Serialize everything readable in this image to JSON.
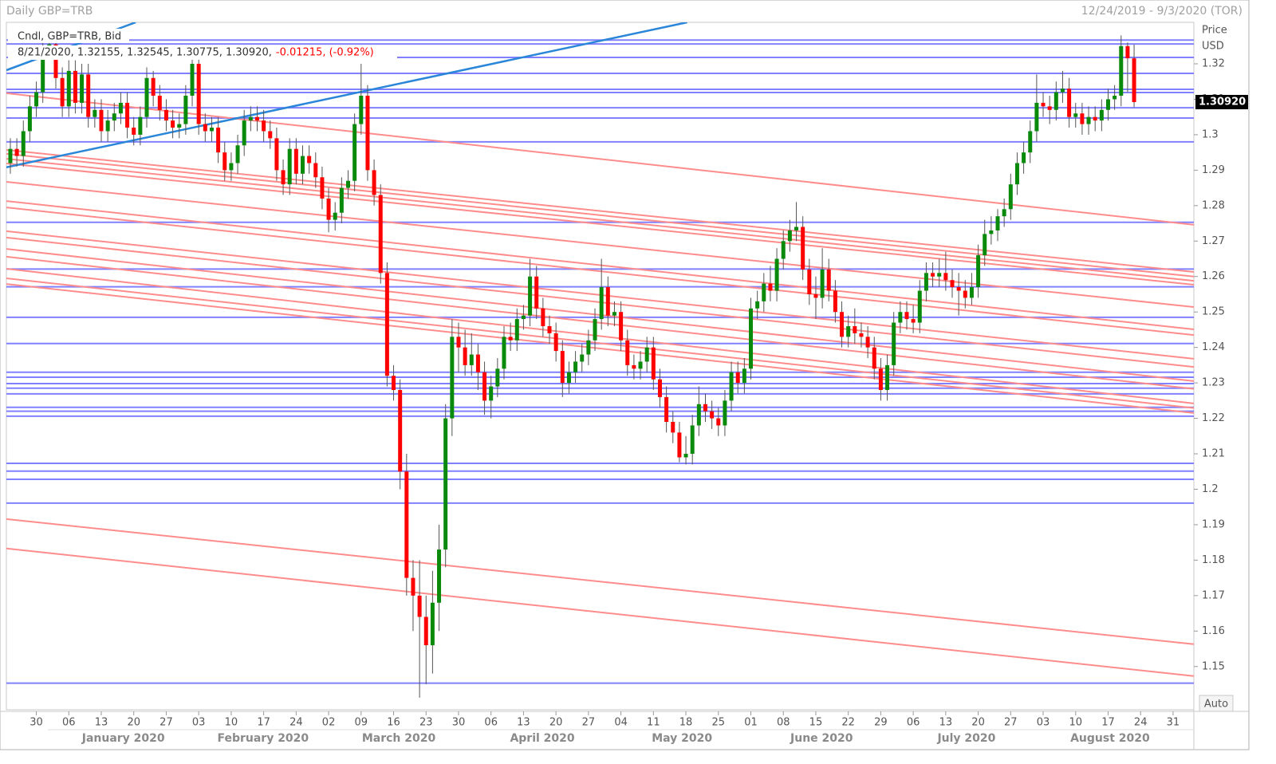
{
  "chart_data": {
    "type": "candlestick",
    "title": "Daily GBP=TRB",
    "date_range": "12/24/2019 - 9/3/2020 (TOR)",
    "legend": {
      "title": "Cndl, GBP=TRB, Bid",
      "quote": "8/21/2020, 1.32155, 1.32545, 1.30775, 1.30920,",
      "change": "-0.01215, (-0.92%)"
    },
    "y_axis_title": "Price",
    "y_axis_unit": "USD",
    "auto_button": "Auto",
    "up_color": "#0a8a0a",
    "down_color": "#ff0000",
    "hline_color": "#8080ff",
    "trend_color": "#ff8c8c",
    "channel_color": "#2a86d8",
    "xlim": [
      -0.61,
      182.2
    ],
    "ylim": [
      1.1378,
      1.3317
    ],
    "yticks": [
      1.15,
      1.16,
      1.17,
      1.18,
      1.19,
      1.2,
      1.21,
      1.22,
      1.23,
      1.24,
      1.25,
      1.26,
      1.27,
      1.28,
      1.29,
      1.3,
      1.31,
      1.32
    ],
    "last_price": {
      "value": 1.3092,
      "label": "1.30920"
    },
    "xticks": [
      {
        "value": 4,
        "label": "30"
      },
      {
        "value": 9,
        "label": "06"
      },
      {
        "value": 14,
        "label": "13"
      },
      {
        "value": 19,
        "label": "20"
      },
      {
        "value": 24,
        "label": "27"
      },
      {
        "value": 29,
        "label": "03"
      },
      {
        "value": 34,
        "label": "10"
      },
      {
        "value": 39,
        "label": "17"
      },
      {
        "value": 44,
        "label": "24"
      },
      {
        "value": 49,
        "label": "02"
      },
      {
        "value": 54,
        "label": "09"
      },
      {
        "value": 59,
        "label": "16"
      },
      {
        "value": 64,
        "label": "23"
      },
      {
        "value": 69,
        "label": "30"
      },
      {
        "value": 74,
        "label": "06"
      },
      {
        "value": 79,
        "label": "13"
      },
      {
        "value": 84,
        "label": "20"
      },
      {
        "value": 89,
        "label": "27"
      },
      {
        "value": 94,
        "label": "04"
      },
      {
        "value": 99,
        "label": "11"
      },
      {
        "value": 104,
        "label": "18"
      },
      {
        "value": 109,
        "label": "25"
      },
      {
        "value": 114,
        "label": "01"
      },
      {
        "value": 119,
        "label": "08"
      },
      {
        "value": 124,
        "label": "15"
      },
      {
        "value": 129,
        "label": "22"
      },
      {
        "value": 134,
        "label": "29"
      },
      {
        "value": 139,
        "label": "06"
      },
      {
        "value": 144,
        "label": "13"
      },
      {
        "value": 149,
        "label": "20"
      },
      {
        "value": 154,
        "label": "27"
      },
      {
        "value": 159,
        "label": "03"
      },
      {
        "value": 164,
        "label": "10"
      },
      {
        "value": 169,
        "label": "17"
      },
      {
        "value": 174,
        "label": "24"
      },
      {
        "value": 179,
        "label": "31"
      }
    ],
    "months": [
      {
        "value": 17.4,
        "label": "January 2020"
      },
      {
        "value": 38.9,
        "label": "February 2020"
      },
      {
        "value": 59.8,
        "label": "March 2020"
      },
      {
        "value": 81.9,
        "label": "April 2020"
      },
      {
        "value": 103.4,
        "label": "May 2020"
      },
      {
        "value": 124.9,
        "label": "June 2020"
      },
      {
        "value": 147.2,
        "label": "July 2020"
      },
      {
        "value": 169.3,
        "label": "August 2020"
      }
    ],
    "hlines": [
      1.3267,
      1.3256,
      1.3218,
      1.3173,
      1.3128,
      1.3119,
      1.3076,
      1.3047,
      1.298,
      1.2753,
      1.2621,
      1.2571,
      1.2485,
      1.2411,
      1.233,
      1.2316,
      1.2298,
      1.2285,
      1.2269,
      1.2231,
      1.222,
      1.2206,
      1.2073,
      1.2051,
      1.2028,
      1.1961,
      1.1453
    ],
    "trendlines": [
      [
        -0.61,
        1.3117,
        182.2,
        1.2746
      ],
      [
        -0.61,
        1.2957,
        182.2,
        1.2613
      ],
      [
        -0.61,
        1.2946,
        182.2,
        1.26
      ],
      [
        -0.61,
        1.2932,
        182.2,
        1.2588
      ],
      [
        -0.61,
        1.2919,
        182.2,
        1.2577
      ],
      [
        -0.61,
        1.2867,
        182.2,
        1.2514
      ],
      [
        -0.61,
        1.2813,
        182.2,
        1.2451
      ],
      [
        -0.61,
        1.2795,
        182.2,
        1.2435
      ],
      [
        -0.61,
        1.2728,
        182.2,
        1.2368
      ],
      [
        -0.61,
        1.271,
        182.2,
        1.2345
      ],
      [
        -0.61,
        1.2678,
        182.2,
        1.2305
      ],
      [
        -0.61,
        1.2656,
        182.2,
        1.2283
      ],
      [
        -0.61,
        1.2622,
        182.2,
        1.2242
      ],
      [
        -0.61,
        1.2595,
        182.2,
        1.2229
      ],
      [
        -0.61,
        1.2579,
        182.2,
        1.2215
      ],
      [
        -0.61,
        1.1916,
        182.2,
        1.1563
      ],
      [
        -0.61,
        1.1833,
        182.2,
        1.1473
      ]
    ],
    "channels": [
      [
        -0.61,
        1.2908,
        104.2,
        1.3317
      ],
      [
        -0.61,
        1.3182,
        19.3,
        1.3317
      ]
    ],
    "candles": [
      [
        1.292,
        1.299,
        1.289,
        1.296
      ],
      [
        1.296,
        1.299,
        1.291,
        1.294
      ],
      [
        1.294,
        1.304,
        1.291,
        1.301
      ],
      [
        1.301,
        1.311,
        1.298,
        1.308
      ],
      [
        1.308,
        1.315,
        1.305,
        1.312
      ],
      [
        1.312,
        1.3285,
        1.309,
        1.325
      ],
      [
        1.325,
        1.327,
        1.323,
        1.3255
      ],
      [
        1.3255,
        1.3285,
        1.313,
        1.316
      ],
      [
        1.316,
        1.319,
        1.305,
        1.308
      ],
      [
        1.308,
        1.321,
        1.305,
        1.318
      ],
      [
        1.318,
        1.321,
        1.306,
        1.309
      ],
      [
        1.309,
        1.32,
        1.306,
        1.317
      ],
      [
        1.317,
        1.32,
        1.302,
        1.305
      ],
      [
        1.305,
        1.31,
        1.302,
        1.307
      ],
      [
        1.307,
        1.31,
        1.298,
        1.301
      ],
      [
        1.301,
        1.307,
        1.298,
        1.304
      ],
      [
        1.304,
        1.309,
        1.301,
        1.306
      ],
      [
        1.306,
        1.312,
        1.303,
        1.309
      ],
      [
        1.309,
        1.312,
        1.299,
        1.302
      ],
      [
        1.302,
        1.305,
        1.297,
        1.3
      ],
      [
        1.3,
        1.308,
        1.297,
        1.305
      ],
      [
        1.305,
        1.319,
        1.302,
        1.316
      ],
      [
        1.316,
        1.318,
        1.308,
        1.311
      ],
      [
        1.311,
        1.314,
        1.304,
        1.307
      ],
      [
        1.307,
        1.31,
        1.301,
        1.304
      ],
      [
        1.304,
        1.307,
        1.299,
        1.302
      ],
      [
        1.302,
        1.306,
        1.299,
        1.303
      ],
      [
        1.303,
        1.314,
        1.3,
        1.311
      ],
      [
        1.311,
        1.323,
        1.308,
        1.32
      ],
      [
        1.32,
        1.323,
        1.3,
        1.303
      ],
      [
        1.303,
        1.306,
        1.298,
        1.301
      ],
      [
        1.301,
        1.305,
        1.298,
        1.302
      ],
      [
        1.302,
        1.305,
        1.292,
        1.295
      ],
      [
        1.295,
        1.298,
        1.287,
        1.29
      ],
      [
        1.29,
        1.295,
        1.287,
        1.292
      ],
      [
        1.292,
        1.3,
        1.289,
        1.297
      ],
      [
        1.297,
        1.307,
        1.294,
        1.304
      ],
      [
        1.304,
        1.308,
        1.301,
        1.305
      ],
      [
        1.305,
        1.308,
        1.301,
        1.304
      ],
      [
        1.304,
        1.307,
        1.298,
        1.301
      ],
      [
        1.301,
        1.304,
        1.296,
        1.299
      ],
      [
        1.299,
        1.302,
        1.287,
        1.29
      ],
      [
        1.29,
        1.293,
        1.283,
        1.286
      ],
      [
        1.286,
        1.299,
        1.283,
        1.296
      ],
      [
        1.296,
        1.299,
        1.286,
        1.289
      ],
      [
        1.289,
        1.297,
        1.286,
        1.294
      ],
      [
        1.294,
        1.297,
        1.289,
        1.292
      ],
      [
        1.292,
        1.295,
        1.285,
        1.288
      ],
      [
        1.288,
        1.291,
        1.279,
        1.282
      ],
      [
        1.282,
        1.285,
        1.2725,
        1.276
      ],
      [
        1.276,
        1.281,
        1.273,
        1.278
      ],
      [
        1.278,
        1.288,
        1.275,
        1.285
      ],
      [
        1.285,
        1.29,
        1.282,
        1.287
      ],
      [
        1.287,
        1.306,
        1.284,
        1.303
      ],
      [
        1.303,
        1.32,
        1.3,
        1.311
      ],
      [
        1.311,
        1.314,
        1.287,
        1.29
      ],
      [
        1.29,
        1.293,
        1.28,
        1.283
      ],
      [
        1.283,
        1.286,
        1.258,
        1.261
      ],
      [
        1.261,
        1.264,
        1.229,
        1.232
      ],
      [
        1.232,
        1.235,
        1.225,
        1.228
      ],
      [
        1.228,
        1.231,
        1.2,
        1.205
      ],
      [
        1.205,
        1.21,
        1.17,
        1.175
      ],
      [
        1.175,
        1.18,
        1.16,
        1.17
      ],
      [
        1.17,
        1.18,
        1.1412,
        1.164
      ],
      [
        1.164,
        1.17,
        1.145,
        1.156
      ],
      [
        1.156,
        1.177,
        1.148,
        1.168
      ],
      [
        1.168,
        1.19,
        1.16,
        1.183
      ],
      [
        1.183,
        1.224,
        1.178,
        1.22
      ],
      [
        1.22,
        1.248,
        1.215,
        1.243
      ],
      [
        1.243,
        1.247,
        1.233,
        1.24
      ],
      [
        1.24,
        1.245,
        1.232,
        1.235
      ],
      [
        1.235,
        1.244,
        1.232,
        1.238
      ],
      [
        1.238,
        1.241,
        1.228,
        1.233
      ],
      [
        1.233,
        1.236,
        1.221,
        1.225
      ],
      [
        1.225,
        1.232,
        1.22,
        1.229
      ],
      [
        1.229,
        1.237,
        1.226,
        1.234
      ],
      [
        1.234,
        1.246,
        1.231,
        1.243
      ],
      [
        1.243,
        1.247,
        1.239,
        1.242
      ],
      [
        1.242,
        1.251,
        1.239,
        1.248
      ],
      [
        1.248,
        1.252,
        1.245,
        1.249
      ],
      [
        1.249,
        1.265,
        1.246,
        1.26
      ],
      [
        1.26,
        1.263,
        1.248,
        1.251
      ],
      [
        1.251,
        1.254,
        1.243,
        1.246
      ],
      [
        1.246,
        1.249,
        1.241,
        1.244
      ],
      [
        1.244,
        1.247,
        1.236,
        1.239
      ],
      [
        1.239,
        1.242,
        1.226,
        1.23
      ],
      [
        1.23,
        1.236,
        1.227,
        1.233
      ],
      [
        1.233,
        1.239,
        1.23,
        1.236
      ],
      [
        1.236,
        1.241,
        1.233,
        1.238
      ],
      [
        1.238,
        1.245,
        1.235,
        1.242
      ],
      [
        1.242,
        1.251,
        1.239,
        1.248
      ],
      [
        1.248,
        1.265,
        1.245,
        1.257
      ],
      [
        1.257,
        1.26,
        1.246,
        1.249
      ],
      [
        1.249,
        1.253,
        1.246,
        1.25
      ],
      [
        1.25,
        1.253,
        1.239,
        1.242
      ],
      [
        1.242,
        1.245,
        1.232,
        1.235
      ],
      [
        1.235,
        1.238,
        1.231,
        1.234
      ],
      [
        1.234,
        1.239,
        1.231,
        1.236
      ],
      [
        1.236,
        1.243,
        1.233,
        1.24
      ],
      [
        1.24,
        1.243,
        1.228,
        1.231
      ],
      [
        1.231,
        1.234,
        1.223,
        1.226
      ],
      [
        1.226,
        1.229,
        1.216,
        1.219
      ],
      [
        1.219,
        1.222,
        1.213,
        1.216
      ],
      [
        1.216,
        1.219,
        1.2076,
        1.209
      ],
      [
        1.209,
        1.215,
        1.207,
        1.21
      ],
      [
        1.21,
        1.221,
        1.207,
        1.218
      ],
      [
        1.218,
        1.229,
        1.215,
        1.224
      ],
      [
        1.224,
        1.227,
        1.219,
        1.222
      ],
      [
        1.222,
        1.225,
        1.217,
        1.22
      ],
      [
        1.22,
        1.223,
        1.215,
        1.218
      ],
      [
        1.218,
        1.228,
        1.215,
        1.225
      ],
      [
        1.225,
        1.236,
        1.222,
        1.233
      ],
      [
        1.233,
        1.236,
        1.227,
        1.23
      ],
      [
        1.23,
        1.237,
        1.227,
        1.234
      ],
      [
        1.234,
        1.254,
        1.231,
        1.251
      ],
      [
        1.251,
        1.256,
        1.248,
        1.253
      ],
      [
        1.253,
        1.261,
        1.25,
        1.258
      ],
      [
        1.258,
        1.263,
        1.253,
        1.256
      ],
      [
        1.256,
        1.268,
        1.253,
        1.265
      ],
      [
        1.265,
        1.273,
        1.262,
        1.27
      ],
      [
        1.27,
        1.276,
        1.267,
        1.273
      ],
      [
        1.273,
        1.281,
        1.27,
        1.274
      ],
      [
        1.274,
        1.277,
        1.259,
        1.262
      ],
      [
        1.262,
        1.265,
        1.252,
        1.255
      ],
      [
        1.255,
        1.26,
        1.248,
        1.254
      ],
      [
        1.254,
        1.268,
        1.251,
        1.262
      ],
      [
        1.262,
        1.265,
        1.253,
        1.256
      ],
      [
        1.256,
        1.259,
        1.247,
        1.25
      ],
      [
        1.25,
        1.253,
        1.24,
        1.243
      ],
      [
        1.243,
        1.249,
        1.24,
        1.246
      ],
      [
        1.246,
        1.251,
        1.241,
        1.244
      ],
      [
        1.244,
        1.247,
        1.24,
        1.243
      ],
      [
        1.243,
        1.246,
        1.237,
        1.24
      ],
      [
        1.24,
        1.243,
        1.231,
        1.234
      ],
      [
        1.234,
        1.237,
        1.225,
        1.228
      ],
      [
        1.228,
        1.238,
        1.225,
        1.235
      ],
      [
        1.235,
        1.25,
        1.232,
        1.247
      ],
      [
        1.247,
        1.253,
        1.244,
        1.25
      ],
      [
        1.25,
        1.253,
        1.245,
        1.248
      ],
      [
        1.248,
        1.252,
        1.244,
        1.247
      ],
      [
        1.247,
        1.259,
        1.244,
        1.256
      ],
      [
        1.256,
        1.264,
        1.253,
        1.261
      ],
      [
        1.261,
        1.264,
        1.257,
        1.26
      ],
      [
        1.26,
        1.265,
        1.257,
        1.261
      ],
      [
        1.261,
        1.267,
        1.256,
        1.259
      ],
      [
        1.259,
        1.262,
        1.254,
        1.257
      ],
      [
        1.257,
        1.261,
        1.249,
        1.256
      ],
      [
        1.256,
        1.259,
        1.251,
        1.254
      ],
      [
        1.254,
        1.261,
        1.252,
        1.257
      ],
      [
        1.257,
        1.269,
        1.254,
        1.266
      ],
      [
        1.266,
        1.276,
        1.263,
        1.272
      ],
      [
        1.272,
        1.277,
        1.269,
        1.273
      ],
      [
        1.273,
        1.279,
        1.27,
        1.277
      ],
      [
        1.277,
        1.282,
        1.274,
        1.279
      ],
      [
        1.279,
        1.289,
        1.276,
        1.286
      ],
      [
        1.286,
        1.295,
        1.283,
        1.292
      ],
      [
        1.292,
        1.298,
        1.289,
        1.295
      ],
      [
        1.295,
        1.304,
        1.292,
        1.301
      ],
      [
        1.301,
        1.317,
        1.298,
        1.309
      ],
      [
        1.309,
        1.312,
        1.305,
        1.308
      ],
      [
        1.308,
        1.311,
        1.303,
        1.307
      ],
      [
        1.307,
        1.315,
        1.304,
        1.312
      ],
      [
        1.312,
        1.318,
        1.309,
        1.313
      ],
      [
        1.313,
        1.316,
        1.302,
        1.305
      ],
      [
        1.305,
        1.309,
        1.302,
        1.306
      ],
      [
        1.306,
        1.309,
        1.3,
        1.303
      ],
      [
        1.303,
        1.308,
        1.3,
        1.305
      ],
      [
        1.305,
        1.308,
        1.301,
        1.304
      ],
      [
        1.304,
        1.31,
        1.301,
        1.307
      ],
      [
        1.307,
        1.313,
        1.304,
        1.31
      ],
      [
        1.31,
        1.314,
        1.307,
        1.311
      ],
      [
        1.311,
        1.328,
        1.308,
        1.325
      ],
      [
        1.325,
        1.326,
        1.312,
        1.32155
      ],
      [
        1.32155,
        1.32545,
        1.30775,
        1.3092
      ]
    ]
  }
}
